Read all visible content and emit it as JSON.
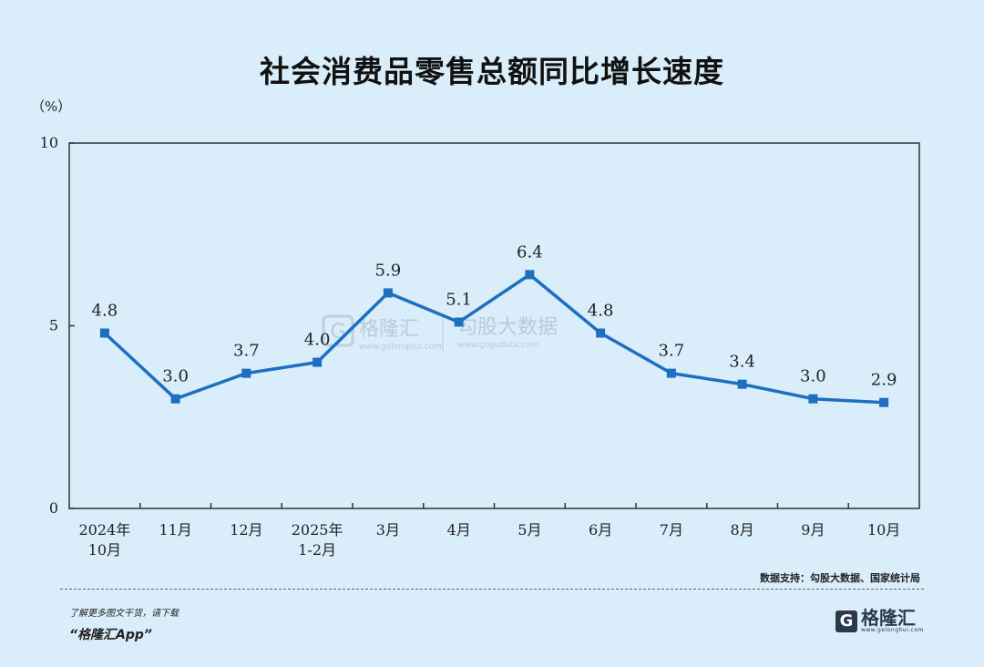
{
  "title": "社会消费品零售总额同比增长速度",
  "source": "数据支持：勾股大数据、国家统计局",
  "footer": {
    "line1": "了解更多图文干货，请下载",
    "line2": "“格隆汇App”"
  },
  "brand": {
    "icon_letter": "G",
    "name": "格隆汇",
    "url": "www.gelonghui.com"
  },
  "watermark": {
    "icon_letter": "G",
    "name1": "格隆汇",
    "url1": "www.gelonghui.com",
    "name2": "勾股大数据",
    "url2": "www.gogudata.com"
  },
  "chart_data": {
    "type": "line",
    "title": "社会消费品零售总额同比增长速度",
    "unit_label": "（%）",
    "categories": [
      "2024年\n10月",
      "11月",
      "12月",
      "2025年\n1-2月",
      "3月",
      "4月",
      "5月",
      "6月",
      "7月",
      "8月",
      "9月",
      "10月"
    ],
    "series": [
      {
        "values": [
          4.8,
          3.0,
          3.7,
          4.0,
          5.9,
          5.1,
          6.4,
          4.8,
          3.7,
          3.4,
          3.0,
          2.9
        ],
        "color": "#1e6fc0"
      }
    ],
    "ylim": [
      0,
      10
    ],
    "yticks": [
      0,
      5,
      10
    ],
    "grid": false,
    "data_labels": true,
    "line_color": "#1e6fc0",
    "axis_color": "#333333"
  }
}
